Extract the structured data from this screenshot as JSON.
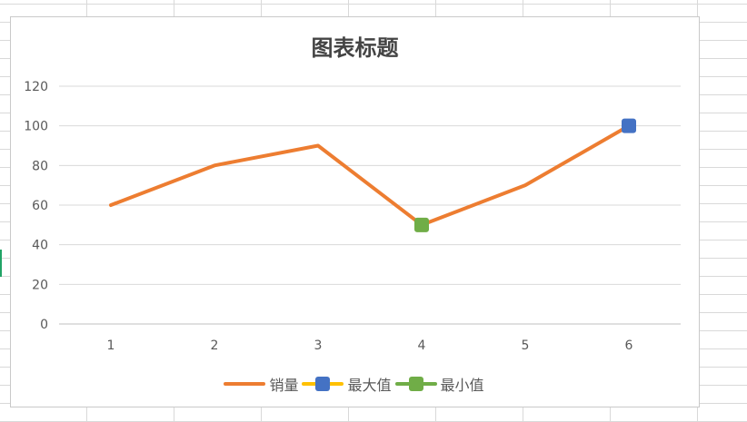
{
  "chart_data": {
    "type": "line",
    "title": "图表标题",
    "xlabel": "",
    "ylabel": "",
    "categories": [
      "1",
      "2",
      "3",
      "4",
      "5",
      "6"
    ],
    "ylim": [
      0,
      120
    ],
    "yticks": [
      0,
      20,
      40,
      60,
      80,
      100,
      120
    ],
    "grid": true,
    "legend_position": "bottom",
    "series": [
      {
        "name": "销量",
        "values": [
          60,
          80,
          90,
          50,
          70,
          100
        ],
        "color": "#ED7D31",
        "marker": "none"
      },
      {
        "name": "最大值",
        "values": [
          null,
          null,
          null,
          null,
          null,
          100
        ],
        "color": "#4472C4",
        "line_color": "#FFC000",
        "marker": "square"
      },
      {
        "name": "最小值",
        "values": [
          null,
          null,
          null,
          50,
          null,
          null
        ],
        "color": "#70AD47",
        "line_color": "#70AD47",
        "marker": "square"
      }
    ]
  }
}
